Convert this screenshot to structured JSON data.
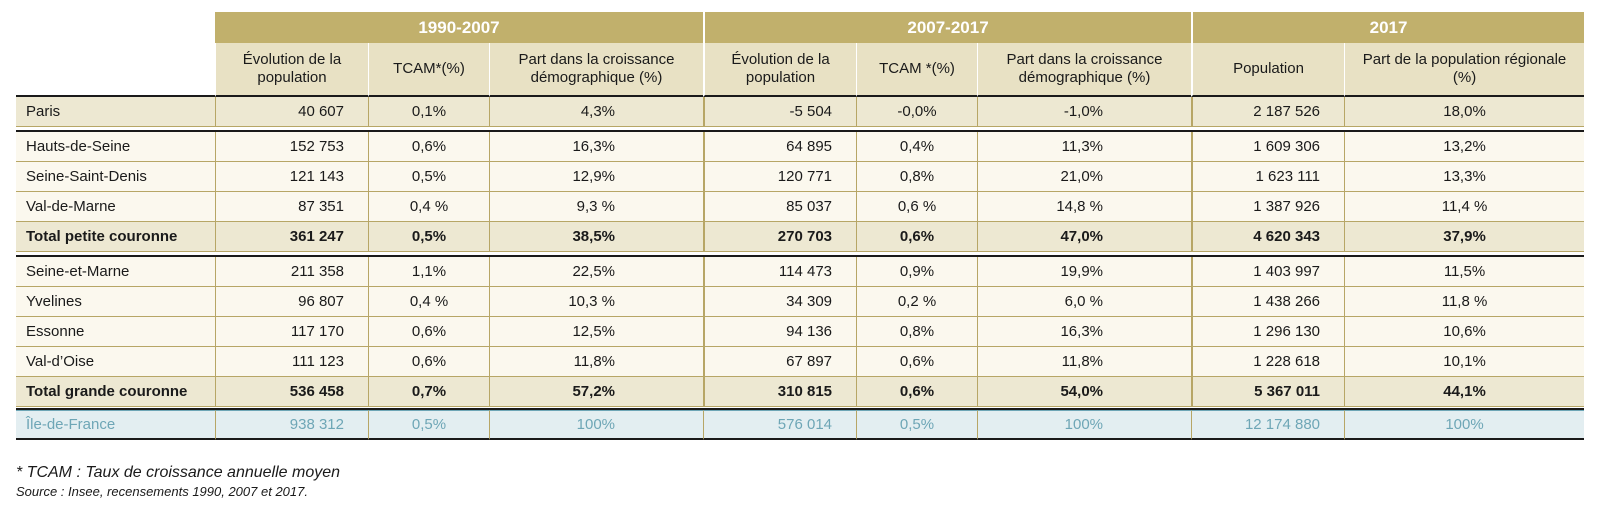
{
  "groups": [
    "1990-2007",
    "2007-2017",
    "2017"
  ],
  "subheaders": [
    "Évolution de la population",
    "TCAM*(%)",
    "Part dans la croissance démographique (%)",
    "Évolution de la population",
    "TCAM *(%)",
    "Part dans la croissance démographique (%)",
    "Population",
    "Part de la population régionale (%)"
  ],
  "rows": [
    {
      "name": "Paris",
      "v": [
        "40 607",
        "0,1%",
        "4,3%",
        "-5 504",
        "-0,0%",
        "-1,0%",
        "2 187 526",
        "18,0%"
      ]
    },
    {
      "name": "Hauts-de-Seine",
      "v": [
        "152 753",
        "0,6%",
        "16,3%",
        "64 895",
        "0,4%",
        "11,3%",
        "1 609 306",
        "13,2%"
      ]
    },
    {
      "name": "Seine-Saint-Denis",
      "v": [
        "121 143",
        "0,5%",
        "12,9%",
        "120 771",
        "0,8%",
        "21,0%",
        "1 623 111",
        "13,3%"
      ]
    },
    {
      "name": "Val-de-Marne",
      "v": [
        "87 351",
        "0,4 %",
        "9,3 %",
        "85 037",
        "0,6 %",
        "14,8 %",
        "1 387 926",
        "11,4 %"
      ]
    },
    {
      "name": "Total petite couronne",
      "v": [
        "361 247",
        "0,5%",
        "38,5%",
        "270 703",
        "0,6%",
        "47,0%",
        "4 620 343",
        "37,9%"
      ]
    },
    {
      "name": "Seine-et-Marne",
      "v": [
        "211 358",
        "1,1%",
        "22,5%",
        "114 473",
        "0,9%",
        "19,9%",
        "1 403 997",
        "11,5%"
      ]
    },
    {
      "name": "Yvelines",
      "v": [
        "96 807",
        "0,4 %",
        "10,3 %",
        "34 309",
        "0,2 %",
        "6,0 %",
        "1 438 266",
        "11,8 %"
      ]
    },
    {
      "name": "Essonne",
      "v": [
        "117 170",
        "0,6%",
        "12,5%",
        "94 136",
        "0,8%",
        "16,3%",
        "1 296 130",
        "10,6%"
      ]
    },
    {
      "name": "Val-d’Oise",
      "v": [
        "111 123",
        "0,6%",
        "11,8%",
        "67 897",
        "0,6%",
        "11,8%",
        "1 228 618",
        "10,1%"
      ]
    },
    {
      "name": "Total grande couronne",
      "v": [
        "536 458",
        "0,7%",
        "57,2%",
        "310 815",
        "0,6%",
        "54,0%",
        "5 367 011",
        "44,1%"
      ]
    },
    {
      "name": "Île-de-France",
      "v": [
        "938 312",
        "0,5%",
        "100%",
        "576 014",
        "0,5%",
        "100%",
        "12 174 880",
        "100%"
      ]
    }
  ],
  "notes": {
    "tcam": "* TCAM : Taux de croissance annuelle moyen",
    "source": "Source : Insee, recensements 1990, 2007 et 2017."
  },
  "colors": {
    "header_gold": "#c1b06c",
    "subheader_beige": "#e8e1c4",
    "total_beige": "#ede8d2",
    "idf_blue_text": "#6ea6b6",
    "idf_blue_bg": "#e3eef1"
  },
  "chart_data": {
    "type": "table",
    "columns": [
      "1990-2007 Évolution de la population",
      "1990-2007 TCAM*(%)",
      "1990-2007 Part dans la croissance démographique (%)",
      "2007-2017 Évolution de la population",
      "2007-2017 TCAM *(%)",
      "2007-2017 Part dans la croissance démographique (%)",
      "2017 Population",
      "2017 Part de la population régionale (%)"
    ],
    "row_labels": [
      "Paris",
      "Hauts-de-Seine",
      "Seine-Saint-Denis",
      "Val-de-Marne",
      "Total petite couronne",
      "Seine-et-Marne",
      "Yvelines",
      "Essonne",
      "Val-d’Oise",
      "Total grande couronne",
      "Île-de-France"
    ]
  }
}
